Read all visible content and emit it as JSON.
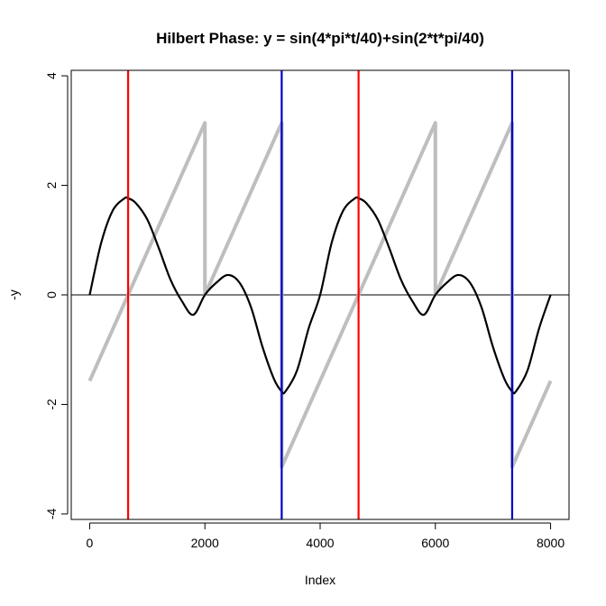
{
  "chart_data": {
    "type": "line",
    "title": "Hilbert Phase: y = sin(4*pi*t/40)+sin(2*t*pi/40)",
    "xlabel": "Index",
    "ylabel": "-y",
    "xlim": [
      -320,
      8320
    ],
    "ylim": [
      -4.1,
      4.1
    ],
    "x_ticks": [
      0,
      2000,
      4000,
      6000,
      8000
    ],
    "x_tick_labels": [
      "0",
      "2000",
      "4000",
      "6000",
      "8000"
    ],
    "y_ticks": [
      -4,
      -2,
      0,
      2,
      4
    ],
    "y_tick_labels": [
      "-4",
      "-2",
      "0",
      "2",
      "4"
    ],
    "grid": false,
    "legend": "none",
    "horizontal_line": {
      "y": 0,
      "color": "#000000"
    },
    "series": [
      {
        "color": "#000000",
        "x": [
          0,
          200,
          400,
          600,
          667,
          800,
          1000,
          1200,
          1400,
          1600,
          1800,
          2000,
          2200,
          2400,
          2600,
          2800,
          3000,
          3200,
          3333,
          3400,
          3600,
          3800,
          4000,
          4200,
          4400,
          4600,
          4667,
          4800,
          5000,
          5200,
          5400,
          5600,
          5800,
          6000,
          6200,
          6400,
          6600,
          6800,
          7000,
          7200,
          7333,
          7400,
          7600,
          7800,
          8000
        ],
        "y": [
          0,
          0.9511,
          1.5388,
          1.7601,
          1.7633,
          1.6776,
          1.3764,
          0.8532,
          0.2853,
          -0.1123,
          -0.3633,
          0,
          0.2245,
          0.3633,
          0.2245,
          -0.2245,
          -0.9511,
          -1.5388,
          -1.7633,
          -1.7601,
          -1.3764,
          -0.6142,
          0,
          0.9511,
          1.5388,
          1.7601,
          1.7633,
          1.6776,
          1.3764,
          0.8532,
          0.2853,
          -0.1123,
          -0.3633,
          0,
          0.2245,
          0.3633,
          0.2245,
          -0.2245,
          -0.9511,
          -1.5388,
          -1.7633,
          -1.7601,
          -1.3764,
          -0.6142,
          0
        ]
      },
      {
        "color": "#bebebe",
        "x": [
          0,
          2000,
          2000,
          3333,
          3333,
          6000,
          6000,
          7333,
          7333,
          8000
        ],
        "y": [
          -1.571,
          3.1416,
          0,
          3.1416,
          -3.1416,
          3.1416,
          0,
          3.1416,
          -3.1416,
          -1.571
        ]
      }
    ],
    "vertical_lines": [
      {
        "x": 667,
        "color": "#ff0000"
      },
      {
        "x": 3333,
        "color": "#0000cd"
      },
      {
        "x": 4667,
        "color": "#ff0000"
      },
      {
        "x": 7333,
        "color": "#0000cd"
      }
    ]
  }
}
